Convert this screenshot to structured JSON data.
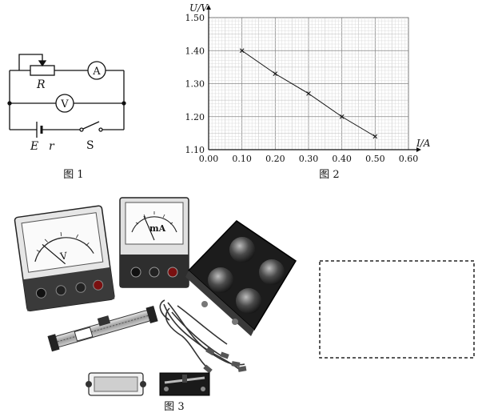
{
  "fig1": {
    "caption": "图 1",
    "resistor_label": "R",
    "ammeter_label": "A",
    "voltmeter_label": "V",
    "emf_label": "E",
    "internal_resistance_label": "r",
    "switch_label": "S"
  },
  "fig2": {
    "caption": "图 2",
    "chart_data": {
      "type": "line",
      "xlabel": "I/A",
      "ylabel": "U/V",
      "xlim": [
        0.0,
        0.6
      ],
      "ylim": [
        1.1,
        1.5
      ],
      "x_ticks": [
        "0.00",
        "0.10",
        "0.20",
        "0.30",
        "0.40",
        "0.50",
        "0.60"
      ],
      "y_ticks": [
        "1.10",
        "1.20",
        "1.30",
        "1.40",
        "1.50"
      ],
      "x_tick_values": [
        0.0,
        0.1,
        0.2,
        0.3,
        0.4,
        0.5,
        0.6
      ],
      "y_tick_values": [
        1.1,
        1.2,
        1.3,
        1.4,
        1.5
      ],
      "grid": true,
      "marker": "x",
      "points": [
        {
          "x": 0.1,
          "y": 1.4
        },
        {
          "x": 0.2,
          "y": 1.33
        },
        {
          "x": 0.3,
          "y": 1.27
        },
        {
          "x": 0.4,
          "y": 1.2
        },
        {
          "x": 0.5,
          "y": 1.14
        }
      ]
    }
  },
  "fig3": {
    "caption": "图 3",
    "voltmeter_dial_label": "V",
    "milliammeter_dial_label": "mA"
  }
}
